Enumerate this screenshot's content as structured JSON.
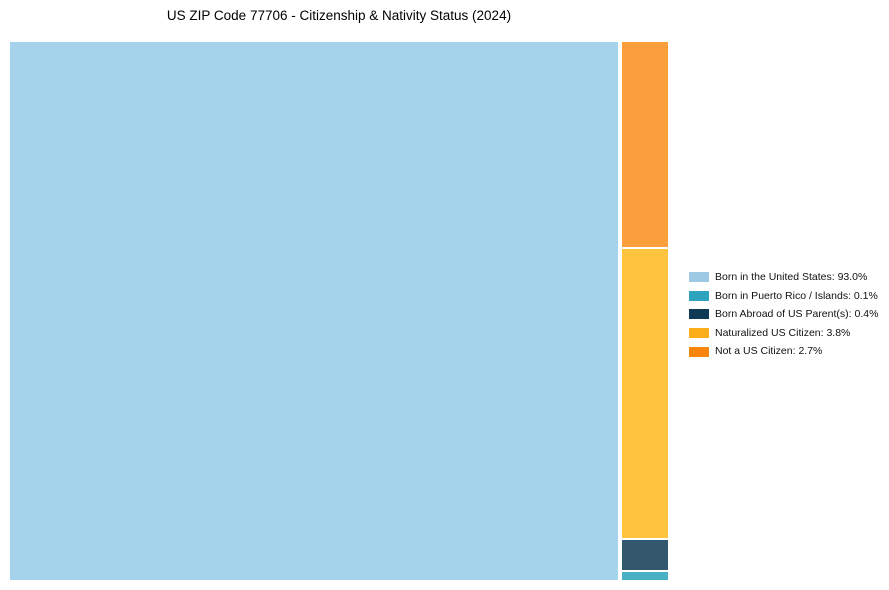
{
  "title": "US ZIP Code 77706 - Citizenship & Nativity Status (2024)",
  "chart_data": {
    "type": "treemap",
    "title": "US ZIP Code 77706 - Citizenship & Nativity Status (2024)",
    "legend_position": "right",
    "background": "#FFFFFF",
    "total_percent": 100.0,
    "series": [
      {
        "name": "Born in the United States",
        "value": 93.0,
        "label": "Born in the United States: 93.0%",
        "legend_color": "#9DC9E5",
        "fill": "#A5D3EB"
      },
      {
        "name": "Born in Puerto Rico / Islands",
        "value": 0.1,
        "label": "Born in Puerto Rico / Islands: 0.1%",
        "legend_color": "#2EA3BF",
        "fill": "#4AB0C4"
      },
      {
        "name": "Born Abroad of US Parent(s)",
        "value": 0.4,
        "label": "Born Abroad of US Parent(s): 0.4%",
        "legend_color": "#0E3A55",
        "fill": "#33586D"
      },
      {
        "name": "Naturalized US Citizen",
        "value": 3.8,
        "label": "Naturalized US Citizen: 3.8%",
        "legend_color": "#FCAE1A",
        "fill": "#FFC43E"
      },
      {
        "name": "Not a US Citizen",
        "value": 2.7,
        "label": "Not a US Citizen: 2.7%",
        "legend_color": "#F8860D",
        "fill": "#FA9F3C"
      }
    ]
  }
}
